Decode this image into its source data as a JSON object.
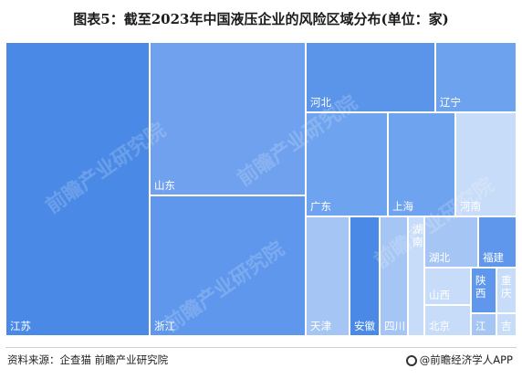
{
  "title": "图表5：截至2023年中国液压企业的风险区域分布(单位：家)",
  "source": "资料来源：企查猫 前瞻产业研究院",
  "brand": "@前瞻经济学人APP",
  "watermark": "前瞻产业研究院",
  "chart_data": {
    "type": "treemap",
    "title": "图表5：截至2023年中国液压企业的风险区域分布(单位：家)",
    "values_estimated": true,
    "items": [
      {
        "name": "江苏",
        "value": 2230,
        "color": "#4a8ae6"
      },
      {
        "name": "山东",
        "value": 1260,
        "color": "#6fa1ee"
      },
      {
        "name": "浙江",
        "value": 1150,
        "color": "#5e97ec"
      },
      {
        "name": "河北",
        "value": 480,
        "color": "#5b95ea"
      },
      {
        "name": "辽宁",
        "value": 300,
        "color": "#6ca2ee"
      },
      {
        "name": "广东",
        "value": 450,
        "color": "#6ea3ef"
      },
      {
        "name": "上海",
        "value": 370,
        "color": "#6ea3ef"
      },
      {
        "name": "河南",
        "value": 330,
        "color": "#c7dcf8"
      },
      {
        "name": "天津",
        "value": 270,
        "color": "#a5c6f4"
      },
      {
        "name": "安徽",
        "value": 190,
        "color": "#4a8ae6"
      },
      {
        "name": "四川",
        "value": 175,
        "color": "#a5c6f4"
      },
      {
        "name": "湖南",
        "value": 105,
        "color": "#c7dcf8"
      },
      {
        "name": "湖北",
        "value": 145,
        "color": "#a5c6f4"
      },
      {
        "name": "福建",
        "value": 105,
        "color": "#5e97ec"
      },
      {
        "name": "山西",
        "value": 90,
        "color": "#c7dcf8"
      },
      {
        "name": "北京",
        "value": 75,
        "color": "#c7dcf8"
      },
      {
        "name": "陕西",
        "value": 60,
        "color": "#5e97ec"
      },
      {
        "name": "重庆",
        "value": 50,
        "color": "#c7dcf8"
      },
      {
        "name": "江",
        "value": 30,
        "color": "#a5c6f4"
      },
      {
        "name": "吉",
        "value": 25,
        "color": "#c7dcf8"
      }
    ]
  }
}
